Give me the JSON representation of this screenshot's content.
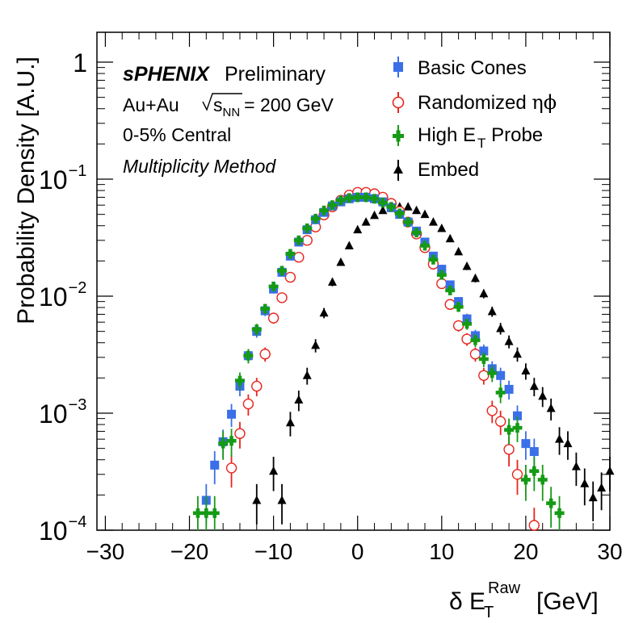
{
  "chart_data": {
    "type": "scatter",
    "title": "",
    "xlabel": {
      "main": "δ E",
      "sub": "T",
      "sup": "Raw",
      "unit": "[GeV]"
    },
    "ylabel": "Probability Density [A.U.]",
    "xlim": [
      -31,
      30
    ],
    "ylim": [
      0.0001,
      1.8
    ],
    "y_scale": "log",
    "x_ticks": [
      -30,
      -20,
      -10,
      0,
      10,
      20,
      30
    ],
    "x_tick_labels": [
      "−30",
      "−20",
      "−10",
      "0",
      "10",
      "20",
      "30"
    ],
    "y_ticks": [
      {
        "value": 1,
        "label": "1"
      },
      {
        "value": 0.1,
        "label_base": "10",
        "label_exp": "−1"
      },
      {
        "value": 0.01,
        "label_base": "10",
        "label_exp": "−2"
      },
      {
        "value": 0.001,
        "label_base": "10",
        "label_exp": "−3"
      },
      {
        "value": 0.0001,
        "label_base": "10",
        "label_exp": "−4"
      }
    ],
    "grid": false,
    "legend_position": "top-right",
    "annotations": {
      "experiment": "sPHENIX",
      "status": "Preliminary",
      "system": "Au+Au",
      "sqrt_label": "s",
      "sqrt_sub": "NN",
      "energy": "= 200 GeV",
      "centrality": "0-5% Central",
      "method": "Multiplicity Method"
    },
    "series": [
      {
        "name": "Basic Cones",
        "legend_label": {
          "text": "Basic Cones"
        },
        "color": "#3a6fe8",
        "marker": "square-filled",
        "points": [
          [
            -18,
            0.00018
          ],
          [
            -17,
            0.00036
          ],
          [
            -16,
            0.00057
          ],
          [
            -15,
            0.00098
          ],
          [
            -14,
            0.0017
          ],
          [
            -13,
            0.0031
          ],
          [
            -12,
            0.005
          ],
          [
            -11,
            0.0075
          ],
          [
            -10,
            0.0115
          ],
          [
            -9,
            0.016
          ],
          [
            -8,
            0.022
          ],
          [
            -7,
            0.029
          ],
          [
            -6,
            0.037
          ],
          [
            -5,
            0.045
          ],
          [
            -4,
            0.052
          ],
          [
            -3,
            0.059
          ],
          [
            -2,
            0.064
          ],
          [
            -1,
            0.068
          ],
          [
            0,
            0.07
          ],
          [
            1,
            0.07
          ],
          [
            2,
            0.068
          ],
          [
            3,
            0.064
          ],
          [
            4,
            0.057
          ],
          [
            5,
            0.05
          ],
          [
            6,
            0.043
          ],
          [
            7,
            0.036
          ],
          [
            8,
            0.029
          ],
          [
            9,
            0.022
          ],
          [
            10,
            0.017
          ],
          [
            11,
            0.0125
          ],
          [
            12,
            0.009
          ],
          [
            13,
            0.0064
          ],
          [
            14,
            0.0046
          ],
          [
            15,
            0.0034
          ],
          [
            16,
            0.0024
          ],
          [
            17,
            0.0021
          ],
          [
            18,
            0.0016
          ],
          [
            19,
            0.00095
          ],
          [
            20,
            0.00055
          ],
          [
            21,
            0.00047
          ]
        ]
      },
      {
        "name": "Randomized ηφ",
        "legend_label": {
          "text": "Randomized ",
          "greek": "ηϕ"
        },
        "color": "#e8251e",
        "marker": "circle-open",
        "points": [
          [
            -15,
            0.00034
          ],
          [
            -14,
            0.00067
          ],
          [
            -13,
            0.0012
          ],
          [
            -12,
            0.0017
          ],
          [
            -11,
            0.0032
          ],
          [
            -10,
            0.0065
          ],
          [
            -9,
            0.0097
          ],
          [
            -8,
            0.0145
          ],
          [
            -7,
            0.0215
          ],
          [
            -6,
            0.03
          ],
          [
            -5,
            0.039
          ],
          [
            -4,
            0.0495
          ],
          [
            -3,
            0.058
          ],
          [
            -2,
            0.066
          ],
          [
            -1,
            0.073
          ],
          [
            0,
            0.077
          ],
          [
            1,
            0.077
          ],
          [
            2,
            0.075
          ],
          [
            3,
            0.07
          ],
          [
            4,
            0.062
          ],
          [
            5,
            0.053
          ],
          [
            6,
            0.043
          ],
          [
            7,
            0.034
          ],
          [
            8,
            0.026
          ],
          [
            9,
            0.0188
          ],
          [
            10,
            0.0128
          ],
          [
            11,
            0.0085
          ],
          [
            12,
            0.0056
          ],
          [
            13,
            0.0043
          ],
          [
            14,
            0.0032
          ],
          [
            15,
            0.0021
          ],
          [
            16,
            0.00105
          ],
          [
            17,
            0.00085
          ],
          [
            18,
            0.00049
          ],
          [
            19,
            0.0003
          ],
          [
            21,
            0.00011
          ]
        ]
      },
      {
        "name": "High E_T Probe",
        "legend_label": {
          "text": "High E",
          "sub": "T",
          "suffix": " Probe"
        },
        "color": "#159a15",
        "marker": "cross-filled",
        "points": [
          [
            -19,
            0.00014
          ],
          [
            -18,
            0.00014
          ],
          [
            -17,
            0.00014
          ],
          [
            -16,
            0.00055
          ],
          [
            -15,
            0.00058
          ],
          [
            -14,
            0.0019
          ],
          [
            -13,
            0.0031
          ],
          [
            -12,
            0.0052
          ],
          [
            -11,
            0.0078
          ],
          [
            -10,
            0.0121
          ],
          [
            -9,
            0.0165
          ],
          [
            -8,
            0.023
          ],
          [
            -7,
            0.03
          ],
          [
            -6,
            0.038
          ],
          [
            -5,
            0.046
          ],
          [
            -4,
            0.054
          ],
          [
            -3,
            0.06
          ],
          [
            -2,
            0.066
          ],
          [
            -1,
            0.069
          ],
          [
            0,
            0.07
          ],
          [
            1,
            0.07
          ],
          [
            2,
            0.068
          ],
          [
            3,
            0.063
          ],
          [
            4,
            0.058
          ],
          [
            5,
            0.051
          ],
          [
            6,
            0.043
          ],
          [
            7,
            0.035
          ],
          [
            8,
            0.027
          ],
          [
            9,
            0.0205
          ],
          [
            10,
            0.0152
          ],
          [
            11,
            0.0112
          ],
          [
            12,
            0.0081
          ],
          [
            13,
            0.0058
          ],
          [
            14,
            0.0042
          ],
          [
            15,
            0.0029
          ],
          [
            16,
            0.0022
          ],
          [
            17,
            0.0015
          ],
          [
            18,
            0.00072
          ],
          [
            19,
            0.00075
          ],
          [
            20,
            0.00027
          ],
          [
            21,
            0.00032
          ],
          [
            22,
            0.00027
          ],
          [
            23,
            0.00017
          ],
          [
            24,
            0.00014
          ]
        ]
      },
      {
        "name": "Embed",
        "legend_label": {
          "text": "Embed"
        },
        "color": "#000000",
        "marker": "triangle-filled",
        "points": [
          [
            -12,
            0.00018
          ],
          [
            -10,
            0.00032
          ],
          [
            -9,
            0.00018
          ],
          [
            -8,
            0.00083
          ],
          [
            -7,
            0.0013
          ],
          [
            -6,
            0.0021
          ],
          [
            -5,
            0.0038
          ],
          [
            -4,
            0.0072
          ],
          [
            -3,
            0.0132
          ],
          [
            -2,
            0.0195
          ],
          [
            -1,
            0.027
          ],
          [
            0,
            0.037
          ],
          [
            1,
            0.043
          ],
          [
            2,
            0.049
          ],
          [
            3,
            0.054
          ],
          [
            4,
            0.057
          ],
          [
            5,
            0.058
          ],
          [
            6,
            0.058
          ],
          [
            7,
            0.054
          ],
          [
            8,
            0.05
          ],
          [
            9,
            0.043
          ],
          [
            10,
            0.038
          ],
          [
            11,
            0.031
          ],
          [
            12,
            0.024
          ],
          [
            13,
            0.018
          ],
          [
            14,
            0.0142
          ],
          [
            15,
            0.0105
          ],
          [
            16,
            0.0074
          ],
          [
            17,
            0.0053
          ],
          [
            18,
            0.0041
          ],
          [
            19,
            0.0032
          ],
          [
            20,
            0.0023
          ],
          [
            21,
            0.0017
          ],
          [
            22,
            0.0014
          ],
          [
            23,
            0.0011
          ],
          [
            24,
            0.0006
          ],
          [
            25,
            0.00055
          ],
          [
            26,
            0.00035
          ],
          [
            27,
            0.00025
          ],
          [
            28,
            0.00019
          ],
          [
            29,
            0.00023
          ],
          [
            30,
            0.00032
          ]
        ]
      }
    ]
  }
}
